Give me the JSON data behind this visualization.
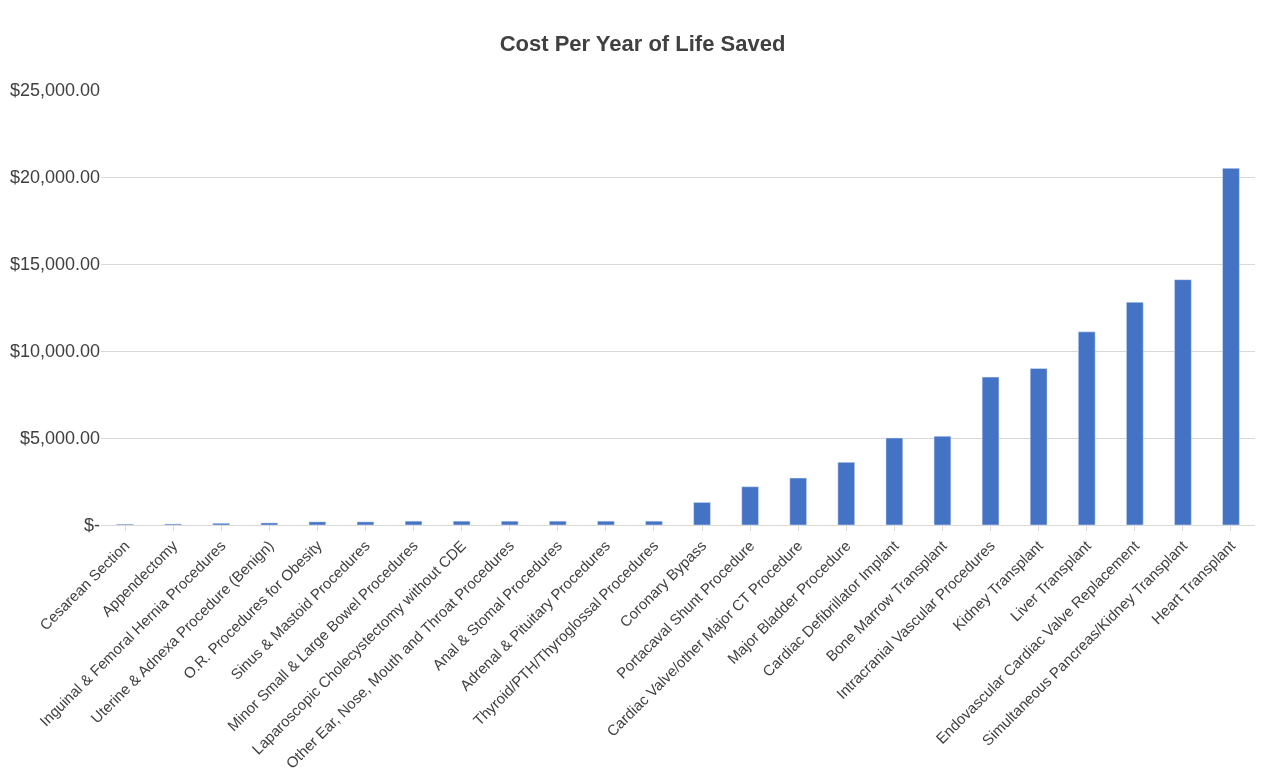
{
  "chart_data": {
    "type": "bar",
    "title": "Cost Per Year of Life Saved",
    "categories": [
      "Cesarean Section",
      "Appendectomy",
      "Inguinal & Femoral Hernia Procedures",
      "Uterine & Adnexa Procedure (Benign)",
      "O.R. Procedures for Obesity",
      "Sinus & Mastoid Procedures",
      "Minor Small & Large Bowel Procedures",
      "Laparoscopic Cholecystectomy without CDE",
      "Other Ear, Nose, Mouth and Throat Procedures",
      "Anal & Stomal Procedures",
      "Adrenal & Pituitary Procedures",
      "Thyroid/PTH/Thyroglossal Procedures",
      "Coronary Bypass",
      "Portacaval Shunt Procedure",
      "Cardiac Valve/other Major CT Procedure",
      "Major Bladder Procedure",
      "Cardiac Defibrillator Implant",
      "Bone Marrow Transplant",
      "Intracranial Vascular Procedures",
      "Kidney Transplant",
      "Liver Transplant",
      "Endovascular Cardiac Valve Replacement",
      "Simultaneous Pancreas/Kidney Transplant",
      "Heart Transplant"
    ],
    "values": [
      50,
      60,
      100,
      120,
      180,
      180,
      220,
      220,
      220,
      220,
      220,
      220,
      1300,
      2200,
      2700,
      3600,
      5000,
      5100,
      8500,
      9000,
      11100,
      12800,
      14100,
      20500
    ],
    "color": "#4472c4",
    "ylim": [
      0,
      25000
    ],
    "yticks": [
      {
        "value": 0,
        "label": "$-"
      },
      {
        "value": 5000,
        "label": "$5,000.00"
      },
      {
        "value": 10000,
        "label": "$10,000.00"
      },
      {
        "value": 15000,
        "label": "$15,000.00"
      },
      {
        "value": 20000,
        "label": "$20,000.00"
      },
      {
        "value": 25000,
        "label": "$25,000.00"
      }
    ],
    "grid": "y"
  }
}
